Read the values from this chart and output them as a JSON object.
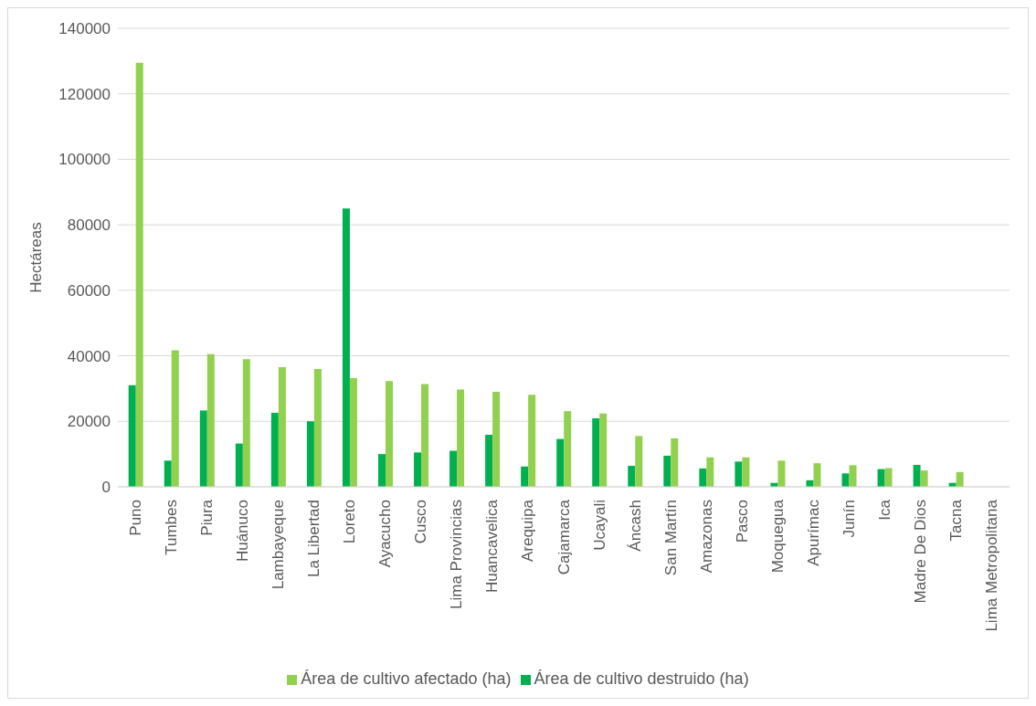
{
  "chart_data": {
    "type": "bar",
    "ylabel": "Hectáreas",
    "categories": [
      "Puno",
      "Tumbes",
      "Piura",
      "Huánuco",
      "Lambayeque",
      "La Libertad",
      "Loreto",
      "Ayacucho",
      "Cusco",
      "Lima Provincias",
      "Huancavelica",
      "Arequipa",
      "Cajamarca",
      "Ucayali",
      "Áncash",
      "San Martín",
      "Amazonas",
      "Pasco",
      "Moquegua",
      "Apurímac",
      "Junín",
      "Ica",
      "Madre De Dios",
      "Tacna",
      "Lima Metropolitana"
    ],
    "series": [
      {
        "name": "Área de cultivo destruido (ha)",
        "color": "#00b050",
        "values": [
          31000,
          8000,
          23300,
          13200,
          22600,
          20000,
          85000,
          10000,
          10500,
          11000,
          15900,
          6200,
          14600,
          20900,
          6400,
          9500,
          5600,
          7700,
          1200,
          2000,
          4100,
          5400,
          6700,
          1200,
          0
        ]
      },
      {
        "name": "Área de cultivo afectado (ha)",
        "color": "#92d050",
        "values": [
          129500,
          41700,
          40500,
          39000,
          36500,
          36000,
          33200,
          32300,
          31400,
          29700,
          29000,
          28100,
          23100,
          22400,
          15500,
          14800,
          9000,
          9000,
          8000,
          7200,
          6600,
          5700,
          5000,
          4500,
          0
        ]
      }
    ],
    "ylim": [
      0,
      140000
    ],
    "yticks": [
      0,
      20000,
      40000,
      60000,
      80000,
      100000,
      120000,
      140000
    ],
    "grid": "y",
    "legend": "bottom"
  }
}
